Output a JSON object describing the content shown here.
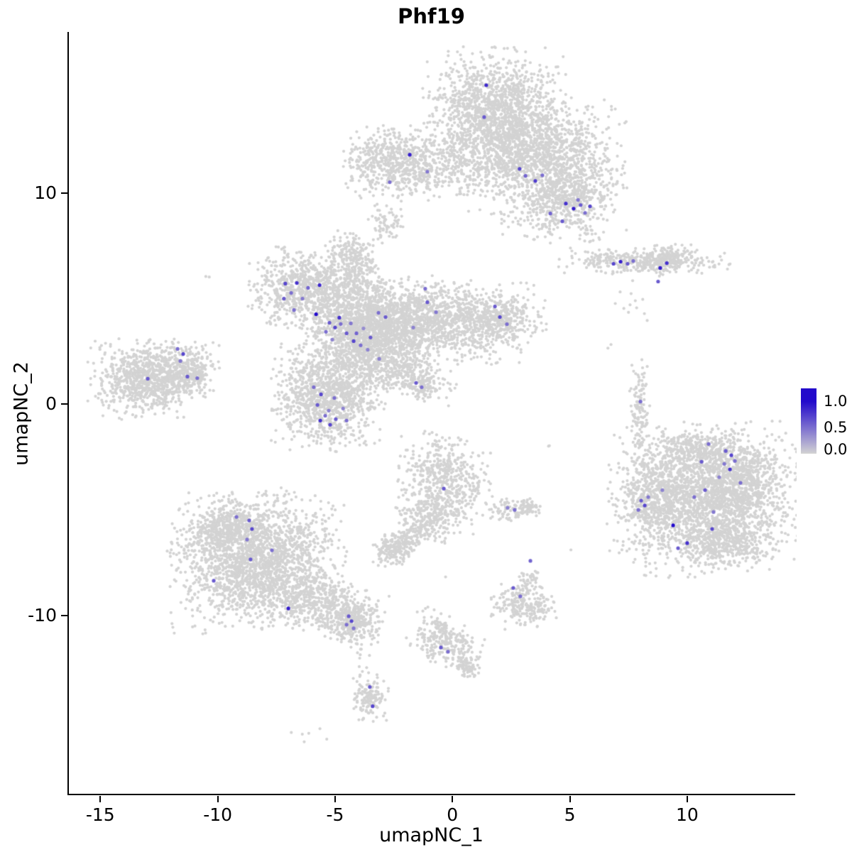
{
  "chart_data": {
    "type": "scatter",
    "title": "Phf19",
    "xlabel": "umapNC_1",
    "ylabel": "umapNC_2",
    "xlim": [
      -16.4,
      14.6
    ],
    "ylim": [
      -18.5,
      17.62
    ],
    "xticks": [
      -15,
      -10,
      -5,
      0,
      5,
      10
    ],
    "yticks": [
      -10,
      0,
      10
    ],
    "grid": false,
    "legend": {
      "position": "right",
      "labels": [
        "1.0",
        "0.5",
        "0.0"
      ],
      "vmax": 1.25
    },
    "colors": {
      "low": "#D3D3D3",
      "high": "#2209CB"
    },
    "point_radius": 2.1,
    "highlight_radius": 2.6,
    "cluster_format": [
      "center_x",
      "center_y",
      "sigma_x",
      "sigma_y",
      "n_cells",
      "rotation_deg"
    ],
    "background_clusters": [
      [
        1.75,
        13.8,
        1.3,
        1.3,
        1400,
        0
      ],
      [
        3.6,
        11.8,
        1.6,
        1.2,
        1300,
        0
      ],
      [
        5.0,
        9.8,
        1.0,
        0.9,
        500,
        0
      ],
      [
        -0.9,
        11.3,
        1.6,
        0.7,
        450,
        0
      ],
      [
        -2.7,
        11.5,
        0.85,
        0.8,
        400,
        0
      ],
      [
        3.6,
        8.9,
        0.9,
        0.6,
        90,
        0
      ],
      [
        -2.9,
        8.6,
        0.35,
        0.4,
        70,
        0
      ],
      [
        8.1,
        6.8,
        1.55,
        0.27,
        380,
        0
      ],
      [
        9.2,
        6.9,
        0.45,
        0.35,
        120,
        0
      ],
      [
        7.7,
        4.8,
        0.35,
        0.45,
        12,
        0
      ],
      [
        -6.3,
        5.45,
        1.05,
        0.85,
        750,
        0
      ],
      [
        -4.4,
        7.1,
        0.5,
        0.5,
        140,
        0
      ],
      [
        -4.2,
        5.9,
        0.55,
        0.75,
        220,
        0
      ],
      [
        -3.6,
        3.4,
        1.25,
        1.15,
        1700,
        0
      ],
      [
        -0.6,
        3.9,
        1.9,
        0.85,
        1300,
        0
      ],
      [
        2.0,
        4.0,
        0.6,
        0.55,
        230,
        0
      ],
      [
        -5.3,
        0.3,
        1.05,
        1.1,
        1100,
        0
      ],
      [
        -2.4,
        1.5,
        1.2,
        0.4,
        280,
        -18
      ],
      [
        -1.3,
        0.85,
        0.3,
        0.3,
        70,
        0
      ],
      [
        -13.1,
        1.2,
        1.05,
        0.8,
        850,
        0
      ],
      [
        -11.6,
        1.7,
        0.7,
        0.55,
        280,
        0
      ],
      [
        -10.9,
        1.25,
        0.25,
        0.25,
        50,
        0
      ],
      [
        -0.4,
        -3.7,
        0.85,
        1.05,
        550,
        0
      ],
      [
        -1.1,
        -5.5,
        0.6,
        0.5,
        180,
        0
      ],
      [
        -2.0,
        -6.4,
        0.45,
        0.3,
        110,
        35
      ],
      [
        -2.6,
        -6.9,
        0.4,
        0.35,
        140,
        0
      ],
      [
        2.5,
        -5.0,
        0.5,
        0.28,
        80,
        0
      ],
      [
        3.2,
        -4.8,
        0.25,
        0.2,
        40,
        0
      ],
      [
        7.9,
        -0.2,
        0.2,
        1.05,
        120,
        0
      ],
      [
        10.7,
        -4.5,
        1.8,
        1.55,
        2400,
        0
      ],
      [
        8.4,
        -4.4,
        0.5,
        0.95,
        260,
        0
      ],
      [
        10.2,
        -2.2,
        0.95,
        0.5,
        300,
        0
      ],
      [
        12.3,
        -3.4,
        0.7,
        0.8,
        350,
        0
      ],
      [
        11.6,
        -6.5,
        0.9,
        0.5,
        250,
        0
      ],
      [
        -8.4,
        -7.4,
        1.6,
        1.45,
        2100,
        0
      ],
      [
        -9.8,
        -5.9,
        0.8,
        0.6,
        350,
        0
      ],
      [
        -5.7,
        -9.4,
        1.25,
        0.65,
        550,
        -22
      ],
      [
        -4.3,
        -10.2,
        0.5,
        0.45,
        230,
        0
      ],
      [
        -3.95,
        -12.1,
        0.15,
        0.75,
        20,
        0
      ],
      [
        -3.55,
        -13.9,
        0.35,
        0.55,
        130,
        0
      ],
      [
        -10.3,
        -9.2,
        0.6,
        0.4,
        8,
        0
      ],
      [
        -6.1,
        -15.6,
        0.5,
        0.2,
        6,
        0
      ],
      [
        3.0,
        -9.5,
        0.6,
        0.5,
        230,
        0
      ],
      [
        3.3,
        -8.3,
        0.22,
        0.3,
        40,
        0
      ],
      [
        -0.4,
        -11.2,
        0.75,
        0.5,
        260,
        -38
      ],
      [
        0.5,
        -12.4,
        0.28,
        0.25,
        70,
        0
      ],
      [
        -10.5,
        6.05,
        0.05,
        0.05,
        2,
        0
      ],
      [
        4.0,
        -2.0,
        0.08,
        0.08,
        2,
        0
      ],
      [
        4.9,
        -6.9,
        0.05,
        0.05,
        1,
        0
      ],
      [
        6.6,
        2.75,
        0.1,
        0.1,
        2,
        0
      ],
      [
        7.9,
        -2.1,
        0.05,
        0.05,
        1,
        0
      ],
      [
        -0.3,
        -8.3,
        0.06,
        0.06,
        1,
        0
      ],
      [
        -7.3,
        2.9,
        0.1,
        0.1,
        2,
        0
      ]
    ],
    "cell_format": [
      "x",
      "y",
      "expression_value"
    ],
    "expressing_cells": [
      [
        1.38,
        15.1,
        0.85
      ],
      [
        1.29,
        13.59,
        0.6
      ],
      [
        2.8,
        11.14,
        0.7
      ],
      [
        3.05,
        10.81,
        0.55
      ],
      [
        3.47,
        10.57,
        0.75
      ],
      [
        3.77,
        10.84,
        0.5
      ],
      [
        4.77,
        9.5,
        0.8
      ],
      [
        5.1,
        9.26,
        0.9
      ],
      [
        5.4,
        9.43,
        0.6
      ],
      [
        5.59,
        9.06,
        0.5
      ],
      [
        5.8,
        9.37,
        0.7
      ],
      [
        5.29,
        9.67,
        0.45
      ],
      [
        4.11,
        9.03,
        0.55
      ],
      [
        4.62,
        8.66,
        0.6
      ],
      [
        -1.88,
        11.81,
        0.9
      ],
      [
        -1.13,
        11.01,
        0.45
      ],
      [
        -2.73,
        10.51,
        0.5
      ],
      [
        6.8,
        6.65,
        0.7
      ],
      [
        7.1,
        6.75,
        0.9
      ],
      [
        7.4,
        6.65,
        0.6
      ],
      [
        7.64,
        6.78,
        0.5
      ],
      [
        8.79,
        6.45,
        0.9
      ],
      [
        9.07,
        6.68,
        0.8
      ],
      [
        8.7,
        5.81,
        0.6
      ],
      [
        -7.18,
        5.71,
        0.7
      ],
      [
        -6.93,
        5.27,
        0.5
      ],
      [
        -6.69,
        5.74,
        0.8
      ],
      [
        -6.45,
        5.0,
        0.45
      ],
      [
        -7.24,
        5.0,
        0.6
      ],
      [
        -6.21,
        5.51,
        0.55
      ],
      [
        -5.87,
        4.26,
        1.0
      ],
      [
        -6.81,
        4.46,
        0.5
      ],
      [
        -5.72,
        5.64,
        0.85
      ],
      [
        -5.3,
        3.86,
        0.6
      ],
      [
        -5.06,
        3.63,
        0.7
      ],
      [
        -4.82,
        3.8,
        0.5
      ],
      [
        -4.57,
        3.36,
        0.6
      ],
      [
        -4.39,
        3.83,
        0.45
      ],
      [
        -4.15,
        3.36,
        0.55
      ],
      [
        -3.85,
        3.59,
        0.35
      ],
      [
        -3.55,
        3.16,
        0.6
      ],
      [
        -4.88,
        4.1,
        0.8
      ],
      [
        -5.45,
        3.43,
        0.5
      ],
      [
        -5.18,
        3.06,
        0.4
      ],
      [
        -4.27,
        2.99,
        0.7
      ],
      [
        -3.97,
        2.79,
        0.5
      ],
      [
        -3.67,
        2.58,
        0.4
      ],
      [
        -3.21,
        4.33,
        0.5
      ],
      [
        -2.91,
        4.13,
        0.6
      ],
      [
        -1.73,
        3.63,
        0.4
      ],
      [
        -1.13,
        4.83,
        0.6
      ],
      [
        -1.22,
        5.47,
        0.5
      ],
      [
        -0.76,
        4.36,
        0.45
      ],
      [
        1.75,
        4.63,
        0.6
      ],
      [
        1.96,
        4.13,
        0.7
      ],
      [
        2.26,
        3.79,
        0.5
      ],
      [
        -1.61,
        1.01,
        0.6
      ],
      [
        -1.37,
        0.81,
        0.5
      ],
      [
        -5.97,
        0.81,
        0.5
      ],
      [
        -5.66,
        0.47,
        0.7
      ],
      [
        -5.81,
        -0.03,
        0.6
      ],
      [
        -5.48,
        -0.54,
        0.5
      ],
      [
        -5.69,
        -0.77,
        0.8
      ],
      [
        -5.33,
        -0.3,
        0.4
      ],
      [
        -5.09,
        0.3,
        0.5
      ],
      [
        -5.03,
        -0.7,
        0.6
      ],
      [
        -4.72,
        -0.2,
        0.4
      ],
      [
        -4.57,
        -0.77,
        0.5
      ],
      [
        -5.27,
        -0.97,
        0.7
      ],
      [
        -3.18,
        2.15,
        0.4
      ],
      [
        -11.77,
        2.62,
        0.5
      ],
      [
        -11.53,
        2.38,
        0.7
      ],
      [
        -11.65,
        2.05,
        0.45
      ],
      [
        -11.35,
        1.31,
        0.6
      ],
      [
        -10.93,
        1.24,
        0.5
      ],
      [
        -13.04,
        1.21,
        0.6
      ],
      [
        -0.43,
        -3.99,
        0.6
      ],
      [
        7.95,
        0.13,
        0.5
      ],
      [
        11.58,
        -2.21,
        0.6
      ],
      [
        11.82,
        -2.41,
        0.7
      ],
      [
        11.97,
        -2.68,
        0.5
      ],
      [
        11.52,
        -2.82,
        0.45
      ],
      [
        11.76,
        -3.08,
        0.8
      ],
      [
        10.85,
        -1.88,
        0.5
      ],
      [
        10.55,
        -2.72,
        0.6
      ],
      [
        11.3,
        -3.45,
        0.4
      ],
      [
        12.21,
        -3.72,
        0.5
      ],
      [
        10.7,
        -4.06,
        0.6
      ],
      [
        10.24,
        -4.39,
        0.5
      ],
      [
        11.0,
        -5.9,
        0.7
      ],
      [
        9.94,
        -6.57,
        0.8
      ],
      [
        9.55,
        -6.81,
        0.6
      ],
      [
        9.34,
        -5.73,
        1.0
      ],
      [
        7.98,
        -4.56,
        0.6
      ],
      [
        8.13,
        -4.79,
        0.7
      ],
      [
        7.86,
        -5.0,
        0.5
      ],
      [
        8.28,
        -4.39,
        0.45
      ],
      [
        8.88,
        -4.06,
        0.4
      ],
      [
        11.06,
        -5.1,
        0.45
      ],
      [
        -9.26,
        -5.33,
        0.5
      ],
      [
        -8.72,
        -5.5,
        0.6
      ],
      [
        -8.6,
        -5.9,
        0.7
      ],
      [
        -8.81,
        -6.4,
        0.45
      ],
      [
        -8.66,
        -7.34,
        0.6
      ],
      [
        -7.75,
        -6.91,
        0.5
      ],
      [
        -10.23,
        -8.35,
        0.6
      ],
      [
        -7.05,
        -9.66,
        0.9
      ],
      [
        -4.48,
        -10.03,
        0.6
      ],
      [
        -4.36,
        -10.26,
        0.7
      ],
      [
        -4.57,
        -10.43,
        0.5
      ],
      [
        -4.27,
        -10.6,
        0.45
      ],
      [
        -3.58,
        -13.38,
        0.6
      ],
      [
        -3.46,
        -14.29,
        0.7
      ],
      [
        2.53,
        -8.69,
        0.6
      ],
      [
        2.83,
        -9.09,
        0.5
      ],
      [
        3.26,
        -7.41,
        0.55
      ],
      [
        -0.55,
        -11.51,
        0.6
      ],
      [
        -0.25,
        -11.71,
        0.5
      ],
      [
        2.29,
        -4.9,
        0.4
      ],
      [
        2.59,
        -5.0,
        0.5
      ]
    ]
  }
}
